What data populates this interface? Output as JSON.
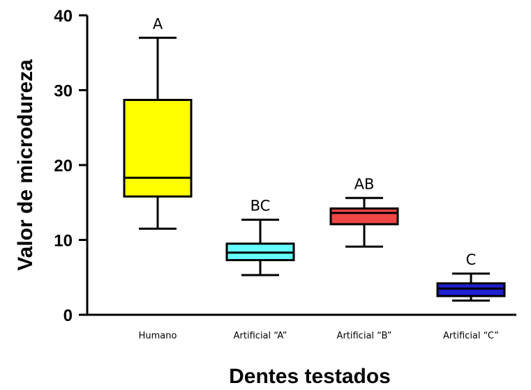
{
  "chart_data": {
    "type": "box",
    "xlabel": "Dentes testados",
    "ylabel": "Valor de microdureza",
    "ylim": [
      0,
      40
    ],
    "yticks": [
      "0",
      "10",
      "20",
      "30",
      "40"
    ],
    "grid": false,
    "categories": [
      "Humano",
      "Artificial “A”",
      "Artificial “B”",
      "Artificial “C”"
    ],
    "boxes": [
      {
        "category": "Humano",
        "min": 11.5,
        "q1": 15.8,
        "median": 18.3,
        "q3": 28.7,
        "max": 37.0,
        "group_label": "A",
        "color": "#ffff00"
      },
      {
        "category": "Artificial “A”",
        "min": 5.3,
        "q1": 7.3,
        "median": 8.3,
        "q3": 9.5,
        "max": 12.7,
        "group_label": "BC",
        "color": "#66ffff"
      },
      {
        "category": "Artificial “B”",
        "min": 9.1,
        "q1": 12.1,
        "median": 13.6,
        "q3": 14.2,
        "max": 15.6,
        "group_label": "AB",
        "color": "#f04646"
      },
      {
        "category": "Artificial “C”",
        "min": 1.9,
        "q1": 2.5,
        "median": 3.5,
        "q3": 4.2,
        "max": 5.5,
        "group_label": "C",
        "color": "#1f1fd0"
      }
    ]
  }
}
